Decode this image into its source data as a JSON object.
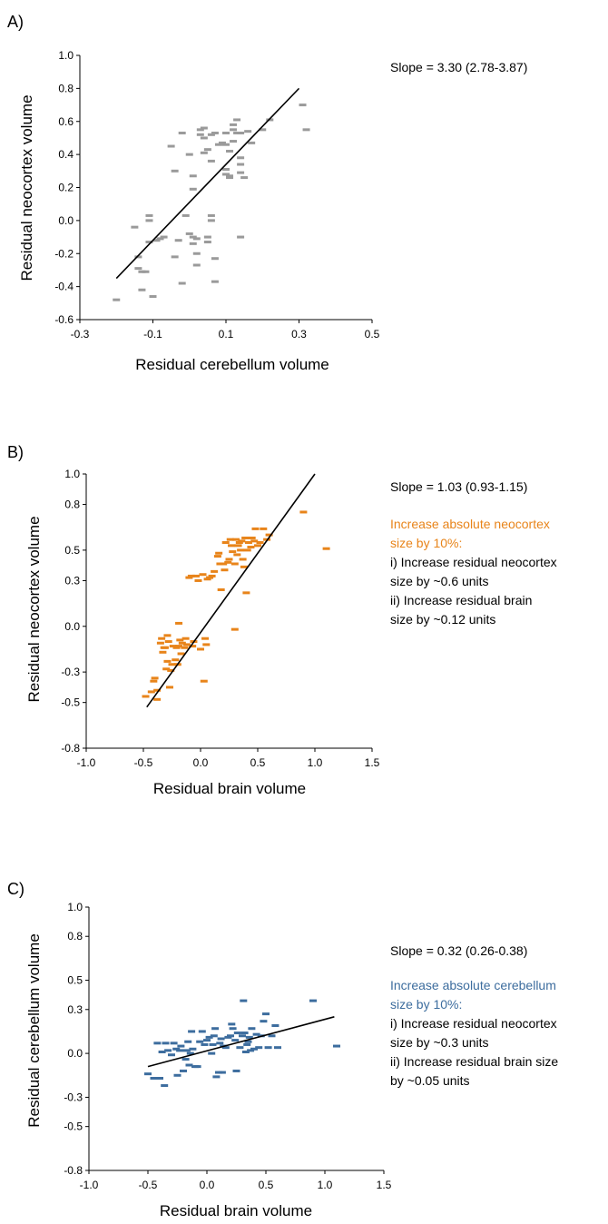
{
  "chart_data": [
    {
      "panel": "A)",
      "type": "scatter",
      "xlabel": "Residual cerebellum volume",
      "ylabel": "Residual neocortex volume",
      "xlim": [
        -0.3,
        0.5
      ],
      "ylim": [
        -0.6,
        1.0
      ],
      "xticks": [
        -0.3,
        -0.1,
        0.1,
        0.3,
        0.5
      ],
      "yticks": [
        -0.6,
        -0.4,
        -0.2,
        0.0,
        0.2,
        0.4,
        0.6,
        0.8,
        1.0
      ],
      "tick_labels_x": [
        "-0.3",
        "-0.1",
        "0.1",
        "0.3",
        "0.5"
      ],
      "tick_labels_y": [
        "-0.6",
        "-0.4",
        "-0.2",
        "0.0",
        "0.2",
        "0.4",
        "0.6",
        "0.8",
        "1.0"
      ],
      "marker_color": "#9a9a9a",
      "grid": false,
      "fit_line": {
        "x": [
          -0.2,
          0.3
        ],
        "y": [
          -0.35,
          0.8
        ]
      },
      "annotations": [
        {
          "text": "Slope = 3.30 (2.78-3.87)",
          "color": "#000000"
        }
      ],
      "points": [
        [
          -0.2,
          -0.48
        ],
        [
          -0.15,
          -0.04
        ],
        [
          -0.14,
          -0.22
        ],
        [
          -0.14,
          -0.29
        ],
        [
          -0.13,
          -0.31
        ],
        [
          -0.13,
          -0.42
        ],
        [
          -0.12,
          -0.31
        ],
        [
          -0.11,
          0.03
        ],
        [
          -0.11,
          -0.13
        ],
        [
          -0.11,
          0.0
        ],
        [
          -0.1,
          -0.46
        ],
        [
          -0.09,
          -0.12
        ],
        [
          -0.08,
          -0.11
        ],
        [
          -0.07,
          -0.1
        ],
        [
          -0.05,
          0.45
        ],
        [
          -0.04,
          0.3
        ],
        [
          -0.04,
          -0.22
        ],
        [
          -0.03,
          -0.12
        ],
        [
          -0.02,
          0.53
        ],
        [
          -0.02,
          -0.38
        ],
        [
          -0.01,
          0.03
        ],
        [
          0.0,
          -0.08
        ],
        [
          0.0,
          0.4
        ],
        [
          0.01,
          0.27
        ],
        [
          0.01,
          0.19
        ],
        [
          0.01,
          -0.1
        ],
        [
          0.01,
          -0.14
        ],
        [
          0.02,
          -0.27
        ],
        [
          0.02,
          -0.2
        ],
        [
          0.02,
          -0.11
        ],
        [
          0.03,
          0.55
        ],
        [
          0.03,
          0.52
        ],
        [
          0.04,
          0.56
        ],
        [
          0.04,
          0.5
        ],
        [
          0.04,
          0.41
        ],
        [
          0.05,
          0.43
        ],
        [
          0.05,
          -0.1
        ],
        [
          0.05,
          -0.13
        ],
        [
          0.06,
          0.52
        ],
        [
          0.06,
          0.0
        ],
        [
          0.06,
          0.03
        ],
        [
          0.06,
          0.36
        ],
        [
          0.07,
          0.53
        ],
        [
          0.07,
          -0.23
        ],
        [
          0.07,
          -0.37
        ],
        [
          0.08,
          0.46
        ],
        [
          0.09,
          0.47
        ],
        [
          0.1,
          0.28
        ],
        [
          0.1,
          0.31
        ],
        [
          0.1,
          0.46
        ],
        [
          0.1,
          0.53
        ],
        [
          0.11,
          0.27
        ],
        [
          0.11,
          0.26
        ],
        [
          0.11,
          0.42
        ],
        [
          0.12,
          0.58
        ],
        [
          0.12,
          0.55
        ],
        [
          0.12,
          0.48
        ],
        [
          0.13,
          0.61
        ],
        [
          0.13,
          0.53
        ],
        [
          0.14,
          0.29
        ],
        [
          0.14,
          0.34
        ],
        [
          0.14,
          0.38
        ],
        [
          0.14,
          0.53
        ],
        [
          0.14,
          -0.1
        ],
        [
          0.15,
          0.26
        ],
        [
          0.16,
          0.54
        ],
        [
          0.17,
          0.47
        ],
        [
          0.2,
          0.55
        ],
        [
          0.22,
          0.61
        ],
        [
          0.31,
          0.7
        ],
        [
          0.32,
          0.55
        ]
      ]
    },
    {
      "panel": "B)",
      "type": "scatter",
      "xlabel": "Residual brain volume",
      "ylabel": "Residual neocortex volume",
      "xlim": [
        -1.0,
        1.5
      ],
      "ylim": [
        -0.8,
        1.0
      ],
      "xticks": [
        -1.0,
        -0.5,
        0.0,
        0.5,
        1.0,
        1.5
      ],
      "yticks": [
        -0.8,
        -0.5,
        -0.3,
        0.0,
        0.3,
        0.5,
        0.8,
        1.0
      ],
      "tick_labels_x": [
        "-1.0",
        "-0.5",
        "0.0",
        "0.5",
        "1.0",
        "1.5"
      ],
      "tick_labels_y": [
        "-0.8",
        "-0.5",
        "-0.3",
        "0.0",
        "0.3",
        "0.5",
        "0.8",
        "1.0"
      ],
      "marker_color": "#e8841a",
      "grid": false,
      "fit_line": {
        "x": [
          -0.47,
          1.0
        ],
        "y": [
          -0.53,
          1.0
        ]
      },
      "annotations": [
        {
          "text": "Slope = 1.03 (0.93-1.15)",
          "color": "#000000"
        },
        {
          "text": "Increase absolute neocortex",
          "color": "#e8841a"
        },
        {
          "text": "size by 10%:",
          "color": "#e8841a"
        },
        {
          "text": "i) Increase residual neocortex",
          "color": "#000000"
        },
        {
          "text": "size by ~0.6 units",
          "color": "#000000"
        },
        {
          "text": "ii) Increase residual brain",
          "color": "#000000"
        },
        {
          "text": "size by ~0.12 units",
          "color": "#000000"
        }
      ],
      "points": [
        [
          -0.48,
          -0.46
        ],
        [
          -0.43,
          -0.43
        ],
        [
          -0.41,
          -0.36
        ],
        [
          -0.4,
          -0.34
        ],
        [
          -0.38,
          -0.48
        ],
        [
          -0.38,
          -0.42
        ],
        [
          -0.35,
          -0.11
        ],
        [
          -0.34,
          -0.08
        ],
        [
          -0.33,
          -0.17
        ],
        [
          -0.32,
          -0.14
        ],
        [
          -0.31,
          -0.14
        ],
        [
          -0.3,
          -0.28
        ],
        [
          -0.29,
          -0.23
        ],
        [
          -0.29,
          -0.06
        ],
        [
          -0.28,
          -0.1
        ],
        [
          -0.27,
          -0.4
        ],
        [
          -0.26,
          -0.29
        ],
        [
          -0.25,
          -0.25
        ],
        [
          -0.24,
          -0.13
        ],
        [
          -0.22,
          -0.22
        ],
        [
          -0.21,
          -0.14
        ],
        [
          -0.2,
          -0.25
        ],
        [
          -0.19,
          -0.13
        ],
        [
          -0.19,
          0.02
        ],
        [
          -0.18,
          -0.09
        ],
        [
          -0.17,
          -0.18
        ],
        [
          -0.16,
          -0.11
        ],
        [
          -0.14,
          -0.14
        ],
        [
          -0.13,
          -0.08
        ],
        [
          -0.12,
          -0.12
        ],
        [
          -0.1,
          0.32
        ],
        [
          -0.08,
          0.33
        ],
        [
          -0.07,
          -0.13
        ],
        [
          -0.06,
          -0.1
        ],
        [
          -0.04,
          0.33
        ],
        [
          -0.02,
          0.3
        ],
        [
          0.0,
          -0.15
        ],
        [
          0.02,
          0.34
        ],
        [
          0.03,
          -0.36
        ],
        [
          0.04,
          -0.08
        ],
        [
          0.05,
          -0.12
        ],
        [
          0.06,
          0.31
        ],
        [
          0.08,
          0.32
        ],
        [
          0.1,
          0.33
        ],
        [
          0.12,
          0.36
        ],
        [
          0.15,
          0.46
        ],
        [
          0.16,
          0.48
        ],
        [
          0.17,
          0.41
        ],
        [
          0.18,
          0.24
        ],
        [
          0.2,
          0.41
        ],
        [
          0.21,
          0.37
        ],
        [
          0.22,
          0.55
        ],
        [
          0.24,
          0.42
        ],
        [
          0.25,
          0.44
        ],
        [
          0.26,
          0.57
        ],
        [
          0.27,
          0.53
        ],
        [
          0.28,
          0.49
        ],
        [
          0.3,
          0.41
        ],
        [
          0.3,
          -0.02
        ],
        [
          0.31,
          0.57
        ],
        [
          0.32,
          0.47
        ],
        [
          0.33,
          0.53
        ],
        [
          0.34,
          0.55
        ],
        [
          0.35,
          0.5
        ],
        [
          0.36,
          0.56
        ],
        [
          0.37,
          0.44
        ],
        [
          0.38,
          0.39
        ],
        [
          0.39,
          0.58
        ],
        [
          0.4,
          0.22
        ],
        [
          0.41,
          0.5
        ],
        [
          0.42,
          0.55
        ],
        [
          0.44,
          0.52
        ],
        [
          0.45,
          0.58
        ],
        [
          0.47,
          0.56
        ],
        [
          0.48,
          0.64
        ],
        [
          0.5,
          0.53
        ],
        [
          0.52,
          0.55
        ],
        [
          0.55,
          0.64
        ],
        [
          0.58,
          0.57
        ],
        [
          0.6,
          0.6
        ],
        [
          0.9,
          0.75
        ],
        [
          1.1,
          0.51
        ]
      ]
    },
    {
      "panel": "C)",
      "type": "scatter",
      "xlabel": "Residual brain volume",
      "ylabel": "Residual cerebellum volume",
      "xlim": [
        -1.0,
        1.5
      ],
      "ylim": [
        -0.8,
        1.0
      ],
      "xticks": [
        -1.0,
        -0.5,
        0.0,
        0.5,
        1.0,
        1.5
      ],
      "yticks": [
        -0.8,
        -0.5,
        -0.3,
        0.0,
        0.3,
        0.5,
        0.8,
        1.0
      ],
      "tick_labels_x": [
        "-1.0",
        "-0.5",
        "0.0",
        "0.5",
        "1.0",
        "1.5"
      ],
      "tick_labels_y": [
        "-0.8",
        "-0.5",
        "-0.3",
        "0.0",
        "0.3",
        "0.5",
        "0.8",
        "1.0"
      ],
      "marker_color": "#3d6d9e",
      "grid": false,
      "fit_line": {
        "x": [
          -0.5,
          1.08
        ],
        "y": [
          -0.09,
          0.25
        ]
      },
      "annotations": [
        {
          "text": "Slope  = 0.32 (0.26-0.38)",
          "color": "#000000"
        },
        {
          "text": "Increase absolute cerebellum",
          "color": "#3d6d9e"
        },
        {
          "text": "size by 10%:",
          "color": "#3d6d9e"
        },
        {
          "text": "i) Increase residual neocortex",
          "color": "#000000"
        },
        {
          "text": "size by ~0.3 units",
          "color": "#000000"
        },
        {
          "text": "ii) Increase residual brain size",
          "color": "#000000"
        },
        {
          "text": "by ~0.05 units",
          "color": "#000000"
        }
      ],
      "points": [
        [
          -0.5,
          -0.14
        ],
        [
          -0.45,
          -0.17
        ],
        [
          -0.42,
          0.07
        ],
        [
          -0.4,
          -0.17
        ],
        [
          -0.38,
          0.01
        ],
        [
          -0.36,
          -0.22
        ],
        [
          -0.35,
          0.07
        ],
        [
          -0.33,
          0.02
        ],
        [
          -0.3,
          -0.01
        ],
        [
          -0.28,
          0.07
        ],
        [
          -0.26,
          0.03
        ],
        [
          -0.25,
          -0.15
        ],
        [
          -0.23,
          0.02
        ],
        [
          -0.22,
          0.05
        ],
        [
          -0.2,
          -0.12
        ],
        [
          -0.18,
          -0.04
        ],
        [
          -0.17,
          0.02
        ],
        [
          -0.16,
          0.08
        ],
        [
          -0.15,
          -0.08
        ],
        [
          -0.14,
          0.0
        ],
        [
          -0.13,
          0.15
        ],
        [
          -0.12,
          0.03
        ],
        [
          -0.1,
          -0.09
        ],
        [
          -0.08,
          -0.09
        ],
        [
          -0.06,
          0.08
        ],
        [
          -0.04,
          0.15
        ],
        [
          -0.02,
          0.06
        ],
        [
          0.0,
          0.09
        ],
        [
          0.02,
          0.11
        ],
        [
          0.04,
          0.0
        ],
        [
          0.05,
          0.06
        ],
        [
          0.06,
          0.12
        ],
        [
          0.07,
          0.17
        ],
        [
          0.08,
          -0.16
        ],
        [
          0.1,
          -0.13
        ],
        [
          0.11,
          0.07
        ],
        [
          0.12,
          0.1
        ],
        [
          0.13,
          -0.13
        ],
        [
          0.14,
          0.05
        ],
        [
          0.16,
          0.04
        ],
        [
          0.18,
          0.11
        ],
        [
          0.2,
          0.12
        ],
        [
          0.21,
          0.2
        ],
        [
          0.22,
          0.17
        ],
        [
          0.24,
          0.09
        ],
        [
          0.25,
          -0.12
        ],
        [
          0.26,
          0.14
        ],
        [
          0.28,
          0.04
        ],
        [
          0.3,
          0.12
        ],
        [
          0.31,
          0.36
        ],
        [
          0.32,
          0.14
        ],
        [
          0.33,
          0.01
        ],
        [
          0.34,
          0.06
        ],
        [
          0.35,
          0.08
        ],
        [
          0.36,
          0.11
        ],
        [
          0.37,
          0.02
        ],
        [
          0.38,
          0.17
        ],
        [
          0.4,
          0.03
        ],
        [
          0.42,
          0.13
        ],
        [
          0.44,
          0.04
        ],
        [
          0.46,
          0.12
        ],
        [
          0.48,
          0.22
        ],
        [
          0.5,
          0.27
        ],
        [
          0.52,
          0.04
        ],
        [
          0.55,
          0.12
        ],
        [
          0.58,
          0.19
        ],
        [
          0.6,
          0.04
        ],
        [
          0.9,
          0.36
        ],
        [
          1.1,
          0.05
        ]
      ]
    }
  ]
}
